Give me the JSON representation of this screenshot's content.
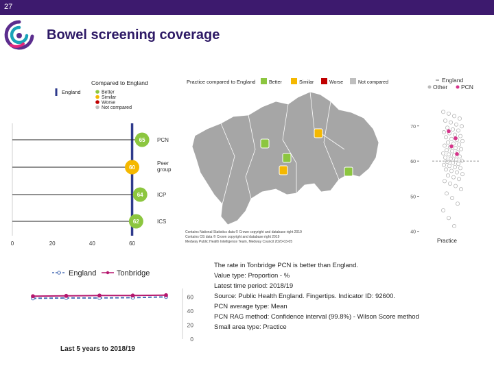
{
  "header": {
    "slide_number": "27",
    "title": "Bowel screening coverage"
  },
  "comparison": {
    "legend_title": "Compared to England",
    "legend_line": "England",
    "legend_items": [
      {
        "label": "Better",
        "color": "#8cc63f"
      },
      {
        "label": "Similar",
        "color": "#f5b800"
      },
      {
        "label": "Worse",
        "color": "#c00000"
      },
      {
        "label": "Not compared",
        "color": "#bfbfbf"
      }
    ]
  },
  "map": {
    "legend_title": "Practice compared to England",
    "legend_items": [
      {
        "label": "Better",
        "color": "#8cc63f"
      },
      {
        "label": "Similar",
        "color": "#f5b800"
      },
      {
        "label": "Worse",
        "color": "#c00000"
      },
      {
        "label": "Not compared",
        "color": "#bfbfbf"
      }
    ],
    "copyright": [
      "Contains National Statistics data © Crown copyright and database right 2019",
      "Contains OS data © Crown copyright and database right 2019",
      "Medway Public Health Intelligence Team, Medway Council 2020-03-05"
    ]
  },
  "info": {
    "lines": [
      "The rate in Tonbridge PCN is better than England.",
      "Value type: Proportion - %",
      "Latest time period: 2018/19",
      "Source: Public Health England. Fingertips. Indicator ID: 92600.",
      "PCN average type: Mean",
      "PCN RAG method: Confidence interval (99.8%) - Wilson Score method",
      "Small area type: Practice"
    ]
  },
  "chart_data": [
    {
      "type": "bar",
      "categories": [
        "PCN",
        "Peer group",
        "ICP",
        "ICS"
      ],
      "values": [
        65,
        60,
        64,
        62
      ],
      "point_colors": [
        "#8cc63f",
        "#f5b800",
        "#8cc63f",
        "#8cc63f"
      ],
      "reference_line": {
        "name": "England",
        "value": 60,
        "color": "#2e3a8c"
      },
      "x_ticks": [
        0,
        20,
        40,
        60
      ],
      "xlim": [
        0,
        66
      ]
    },
    {
      "type": "scatter",
      "legend": [
        {
          "label": "England",
          "color": "#999999",
          "marker": "dash"
        },
        {
          "label": "Other",
          "color": "#bbbbbb",
          "marker": "circle"
        },
        {
          "label": "PCN",
          "color": "#d6338a",
          "marker": "circle"
        }
      ],
      "xlabel": "Practice",
      "y_ticks": [
        40,
        50,
        60,
        70
      ],
      "ylim": [
        38,
        76
      ],
      "england_value": 60,
      "pcn_values": [
        68.5,
        66.5,
        64.2,
        62.0
      ],
      "other_values": [
        74,
        73.5,
        72.8,
        72.1,
        71.5,
        71.0,
        70.4,
        69.9,
        69.5,
        69.0,
        68.7,
        68.2,
        67.9,
        67.5,
        67.1,
        66.8,
        66.3,
        66.0,
        65.7,
        65.3,
        65.0,
        64.7,
        64.4,
        64.0,
        63.7,
        63.4,
        63.1,
        62.8,
        62.5,
        62.2,
        61.9,
        61.6,
        61.3,
        61.0,
        60.7,
        60.4,
        60.1,
        59.8,
        59.5,
        59.2,
        58.9,
        58.6,
        58.3,
        58.0,
        57.6,
        57.2,
        56.8,
        56.3,
        55.9,
        55.4,
        54.9,
        54.3,
        53.6,
        52.9,
        52.0,
        50.8,
        49.5,
        47.9,
        46.0,
        43.8,
        41.5
      ]
    },
    {
      "type": "line",
      "title": "Last 5 years to 2018/19",
      "series": [
        {
          "name": "England",
          "color": "#4a6fb5",
          "dashed": true,
          "values": [
            58,
            58.5,
            58.5,
            59,
            60
          ]
        },
        {
          "name": "Tonbridge",
          "color": "#b5176e",
          "dashed": false,
          "values": [
            61,
            61.5,
            62,
            62,
            62.5
          ]
        }
      ],
      "y_ticks": [
        0,
        20,
        40,
        60
      ],
      "ylim": [
        0,
        72
      ]
    }
  ]
}
